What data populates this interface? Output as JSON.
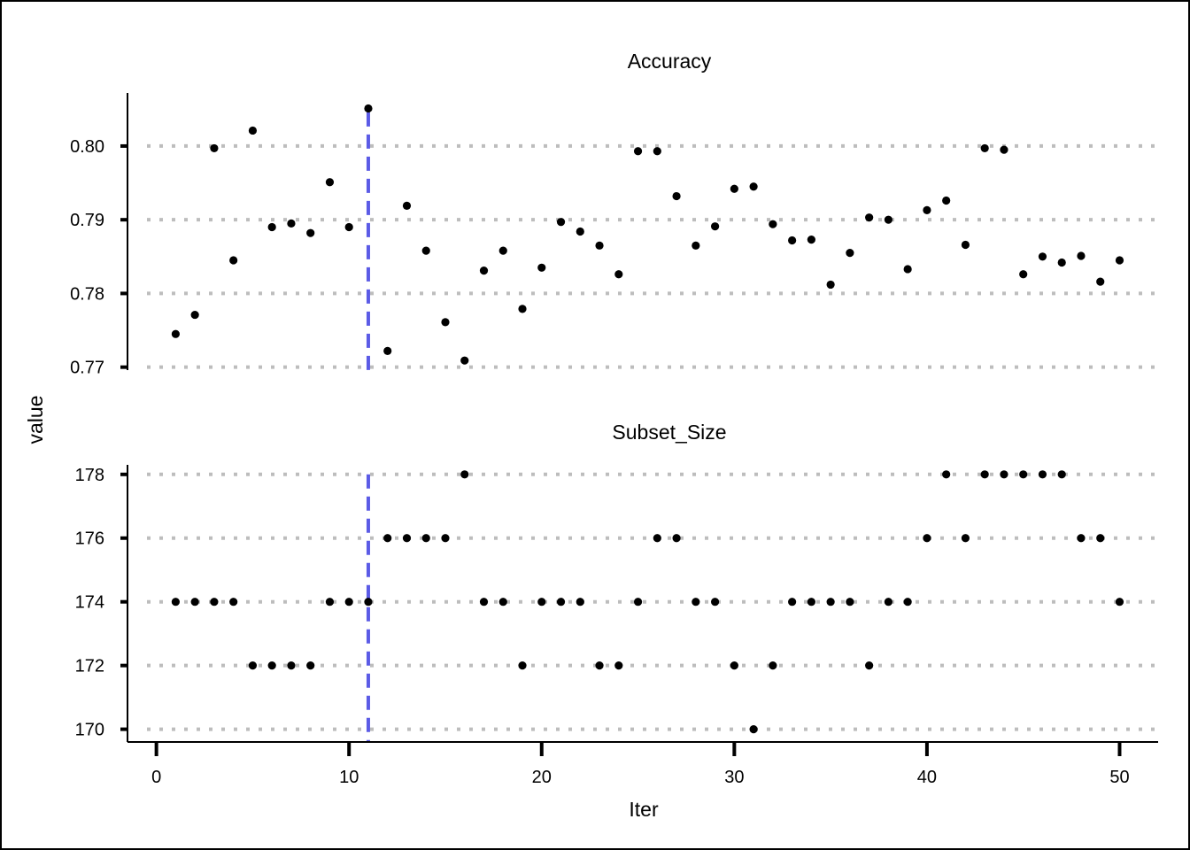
{
  "chart_data": {
    "type": "scatter",
    "xlabel": "Iter",
    "ylabel": "value",
    "x_ticks": [
      0,
      10,
      20,
      30,
      40,
      50
    ],
    "xlim": [
      -1.5,
      52
    ],
    "best_iter": 11,
    "marker_line_color": "#5b5be6",
    "point_color": "#000000",
    "grid_color": "#bdbdbd",
    "panels": [
      {
        "title": "Accuracy",
        "ylim": [
          0.7696,
          0.8072
        ],
        "y_ticks": [
          0.77,
          0.78,
          0.79,
          0.8
        ],
        "y_tick_labels": [
          "0.77",
          "0.78",
          "0.79",
          "0.80"
        ],
        "x": [
          1,
          2,
          3,
          4,
          5,
          6,
          7,
          8,
          9,
          10,
          11,
          12,
          13,
          14,
          15,
          16,
          17,
          18,
          19,
          20,
          21,
          22,
          23,
          24,
          25,
          26,
          27,
          28,
          29,
          30,
          31,
          32,
          33,
          34,
          35,
          36,
          37,
          38,
          39,
          40,
          41,
          42,
          43,
          44,
          45,
          46,
          47,
          48,
          49,
          50
        ],
        "y": [
          0.7745,
          0.7771,
          0.7997,
          0.7845,
          0.8021,
          0.789,
          0.7895,
          0.7882,
          0.7951,
          0.789,
          0.8051,
          0.7722,
          0.7919,
          0.7858,
          0.7761,
          0.7709,
          0.7831,
          0.7858,
          0.7779,
          0.7835,
          0.7897,
          0.7884,
          0.7865,
          0.7826,
          0.7993,
          0.7993,
          0.7932,
          0.7865,
          0.7891,
          0.7942,
          0.7945,
          0.7894,
          0.7872,
          0.7873,
          0.7812,
          0.7855,
          0.7903,
          0.79,
          0.7833,
          0.7913,
          0.7926,
          0.7866,
          0.7997,
          0.7995,
          0.7826,
          0.785,
          0.7842,
          0.7851,
          0.7816,
          0.7845
        ]
      },
      {
        "title": "Subset_Size",
        "ylim": [
          169.6,
          178.3
        ],
        "y_ticks": [
          170,
          172,
          174,
          176,
          178
        ],
        "y_tick_labels": [
          "170",
          "172",
          "174",
          "176",
          "178"
        ],
        "x": [
          1,
          2,
          3,
          4,
          5,
          6,
          7,
          8,
          9,
          10,
          11,
          12,
          13,
          14,
          15,
          16,
          17,
          18,
          19,
          20,
          21,
          22,
          23,
          24,
          25,
          26,
          27,
          28,
          29,
          30,
          31,
          32,
          33,
          34,
          35,
          36,
          37,
          38,
          39,
          40,
          41,
          42,
          43,
          44,
          45,
          46,
          47,
          48,
          49,
          50
        ],
        "y": [
          174,
          174,
          174,
          174,
          172,
          172,
          172,
          172,
          174,
          174,
          174,
          176,
          176,
          176,
          176,
          178,
          174,
          174,
          172,
          174,
          174,
          174,
          172,
          172,
          174,
          176,
          176,
          174,
          174,
          172,
          170,
          172,
          174,
          174,
          174,
          174,
          172,
          174,
          174,
          176,
          178,
          176,
          178,
          178,
          178,
          178,
          178,
          176,
          176,
          174
        ]
      }
    ]
  }
}
